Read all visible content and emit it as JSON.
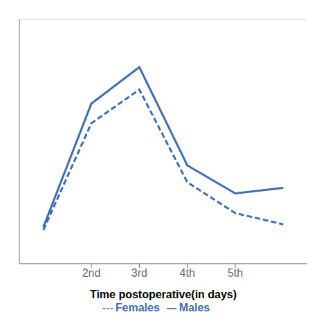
{
  "chart_data": {
    "type": "line",
    "x": [
      1,
      2,
      3,
      4,
      5,
      6
    ],
    "series": [
      {
        "name": "Males",
        "color": "#3A6DB5",
        "values": [
          8,
          52,
          65,
          30,
          20,
          22
        ],
        "line_style": "solid"
      },
      {
        "name": "Females",
        "color": "#3A6DB5",
        "values": [
          7,
          45,
          57,
          24,
          13,
          9
        ],
        "line_style": "dashed"
      }
    ],
    "xlabel": "Time postoperative(in days)",
    "xlim": [
      0.5,
      6.5
    ],
    "xticks": [
      {
        "value": 2,
        "label": "2nd"
      },
      {
        "value": 3,
        "label": "3rd"
      },
      {
        "value": 4,
        "label": "4th"
      },
      {
        "value": 5,
        "label": "5th"
      }
    ],
    "ylim": [
      -5,
      82
    ],
    "yticks": [
      0,
      16,
      32,
      48,
      64,
      80
    ],
    "grid": true,
    "legend": "bottom",
    "tick_labels": "x"
  }
}
